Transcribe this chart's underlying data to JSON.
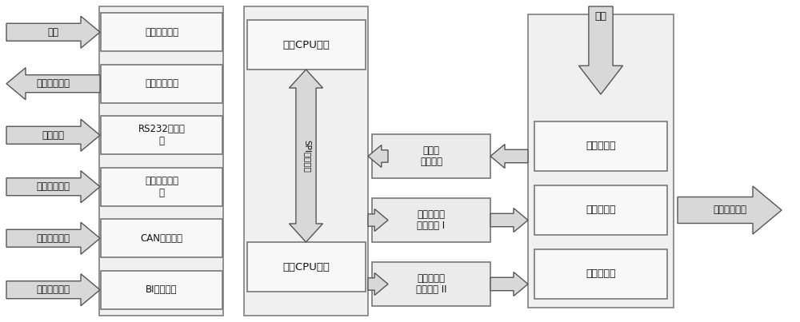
{
  "bg_color": "#ffffff",
  "box_fill_light": "#f5f5f5",
  "box_fill_mid": "#ebebeb",
  "box_edge": "#666666",
  "arrow_fill": "#d0d0d0",
  "arrow_edge": "#555555",
  "left_labels": [
    "电源",
    "生命周期信号",
    "信息交互",
    "电流指令信号",
    "网络指令信号",
    "工作使能信号"
  ],
  "left_boxes": [
    "电源处理模块",
    "生命信号模块",
    "RS232通讯模\n块",
    "模拟量输入模\n块",
    "CAN通讯模块",
    "BI输入模块"
  ],
  "cpu_top": "监控CPU模块",
  "cpu_bottom": "主控CPU模块",
  "spi_label": "SPI总线通讯",
  "mid_boxes": [
    "模拟量\n采集模块",
    "高速电磁阀\n驱动模块 I",
    "高速电磁阀\n驱动模块 II"
  ],
  "right_inner_boxes": [
    "压力传感器",
    "排气电磁阀",
    "充气电磁阀"
  ],
  "wind_label": "风源",
  "output_label": "压力控制输出"
}
